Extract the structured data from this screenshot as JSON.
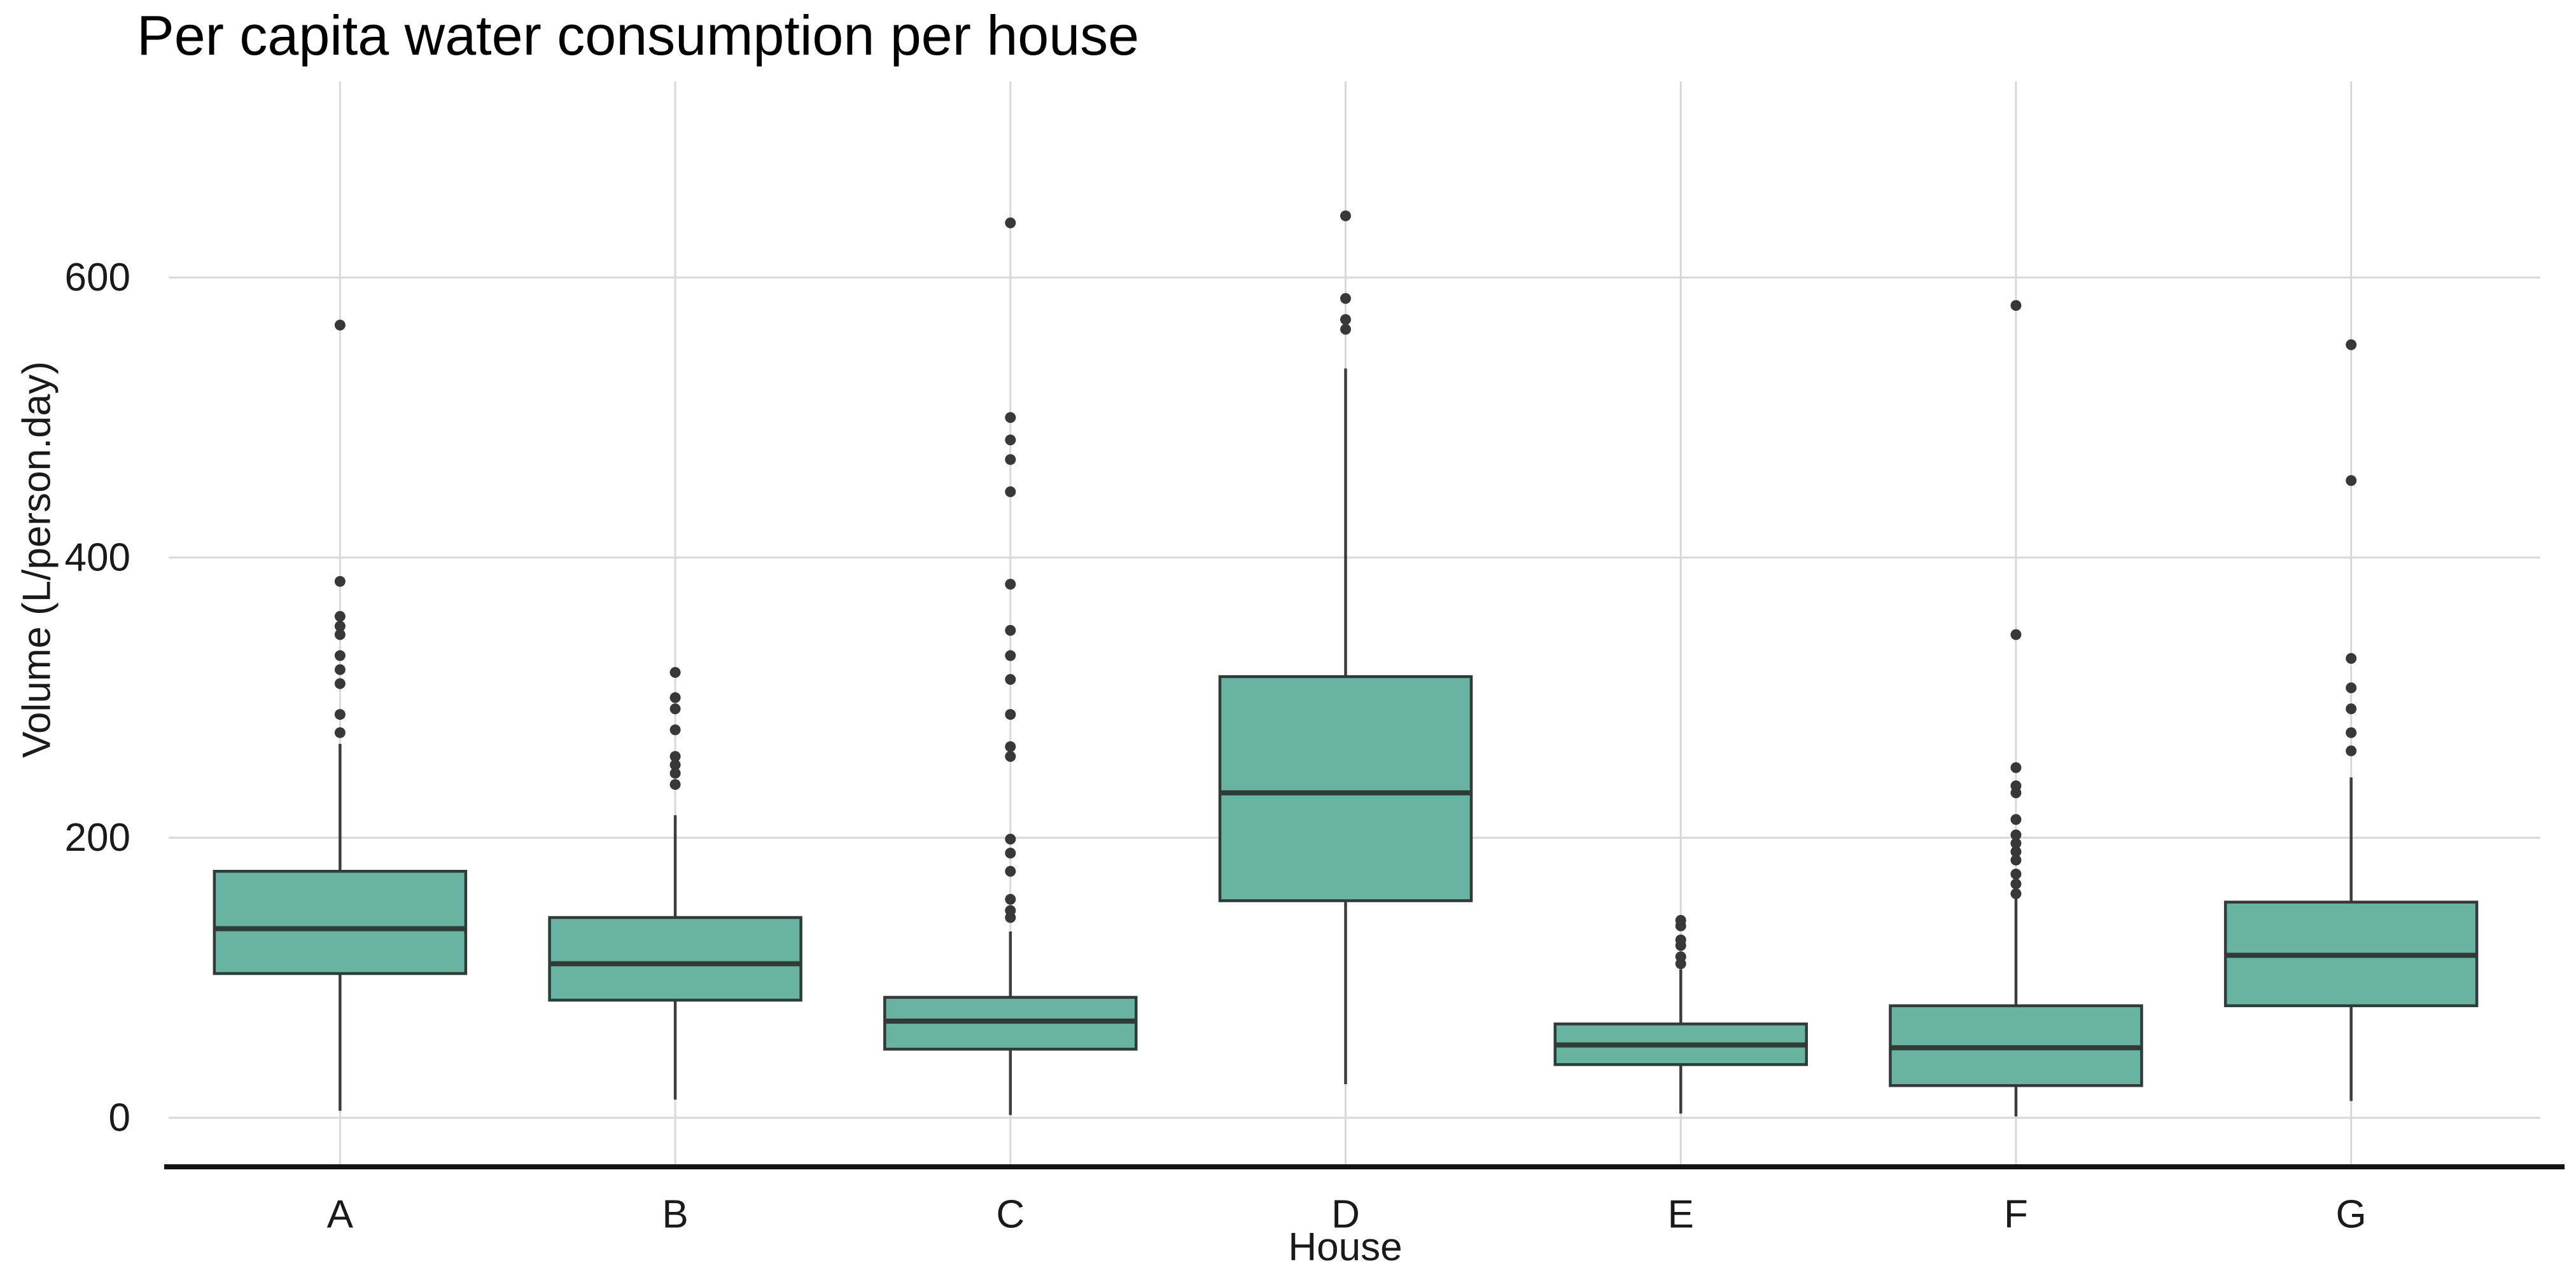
{
  "chart_data": {
    "type": "boxplot",
    "title": "Per capita water consumption per house",
    "xlabel": "House",
    "ylabel": "Volume (L/person.day)",
    "categories": [
      "A",
      "B",
      "C",
      "D",
      "E",
      "F",
      "G"
    ],
    "y_ticks": [
      0,
      200,
      400,
      600
    ],
    "ylim": [
      -35,
      740
    ],
    "grid": "major-horizontal-and-vertical",
    "legend": "none",
    "series": [
      {
        "house": "A",
        "whisker_low": 5,
        "q1": 103,
        "median": 135,
        "q3": 176,
        "whisker_high": 267,
        "outliers": [
          566,
          383,
          358,
          351,
          345,
          330,
          320,
          310,
          288,
          275
        ]
      },
      {
        "house": "B",
        "whisker_low": 13,
        "q1": 84,
        "median": 110,
        "q3": 143,
        "whisker_high": 216,
        "outliers": [
          318,
          300,
          292,
          277,
          258,
          252,
          246,
          238
        ]
      },
      {
        "house": "C",
        "whisker_low": 2,
        "q1": 49,
        "median": 69,
        "q3": 86,
        "whisker_high": 133,
        "outliers": [
          639,
          500,
          484,
          470,
          447,
          381,
          348,
          330,
          313,
          288,
          265,
          258,
          199,
          189,
          176,
          156,
          148,
          143
        ]
      },
      {
        "house": "D",
        "whisker_low": 24,
        "q1": 155,
        "median": 232,
        "q3": 315,
        "whisker_high": 535,
        "outliers": [
          644,
          585,
          570,
          563
        ]
      },
      {
        "house": "E",
        "whisker_low": 3,
        "q1": 38,
        "median": 52,
        "q3": 67,
        "whisker_high": 106,
        "outliers": [
          141,
          137,
          127,
          123,
          115,
          110
        ]
      },
      {
        "house": "F",
        "whisker_low": 1,
        "q1": 23,
        "median": 50,
        "q3": 80,
        "whisker_high": 157,
        "outliers": [
          580,
          345,
          250,
          237,
          232,
          213,
          202,
          196,
          190,
          184,
          174,
          167,
          160
        ]
      },
      {
        "house": "G",
        "whisker_low": 12,
        "q1": 80,
        "median": 116,
        "q3": 154,
        "whisker_high": 243,
        "outliers": [
          552,
          455,
          328,
          307,
          292,
          275,
          262
        ]
      }
    ],
    "colors": {
      "box_fill": "#69b3a2",
      "box_border": "#2f3b36",
      "median": "#2f3b36",
      "whisker": "#3d3d3d",
      "outlier_dot": "#383838",
      "gridline": "#d8d8d8",
      "axis_line": "#141414",
      "text": "#1a1a1a",
      "background": "#ffffff"
    }
  }
}
